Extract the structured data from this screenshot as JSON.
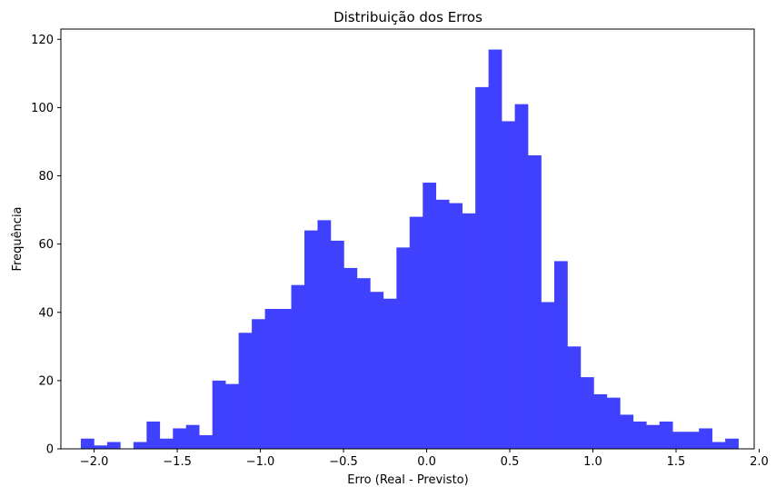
{
  "chart_data": {
    "type": "bar",
    "title": "Distribuição dos Erros",
    "xlabel": "Erro (Real - Previsto)",
    "ylabel": "Frequência",
    "xlim": [
      -2.2,
      1.97
    ],
    "ylim": [
      0,
      123
    ],
    "bin_start": -2.08,
    "bin_width": 0.0791,
    "color": "#4040ff",
    "grid": false,
    "legend": "none",
    "x_ticks": [
      -2.0,
      -1.5,
      -1.0,
      -0.5,
      0.0,
      0.5,
      1.0,
      1.5,
      2.0
    ],
    "x_tick_labels": [
      "−2.0",
      "−1.5",
      "−1.0",
      "−0.5",
      "0.0",
      "0.5",
      "1.0",
      "1.5",
      "2.0"
    ],
    "y_ticks": [
      0,
      20,
      40,
      60,
      80,
      100,
      120
    ],
    "y_tick_labels": [
      "0",
      "20",
      "40",
      "60",
      "80",
      "100",
      "120"
    ],
    "values": [
      3,
      1,
      2,
      0,
      2,
      8,
      3,
      6,
      7,
      4,
      20,
      19,
      34,
      38,
      41,
      41,
      48,
      64,
      67,
      61,
      53,
      50,
      46,
      44,
      59,
      68,
      78,
      73,
      72,
      69,
      106,
      117,
      96,
      101,
      86,
      43,
      55,
      30,
      21,
      16,
      15,
      10,
      8,
      7,
      8,
      5,
      5,
      6,
      2,
      3
    ]
  }
}
